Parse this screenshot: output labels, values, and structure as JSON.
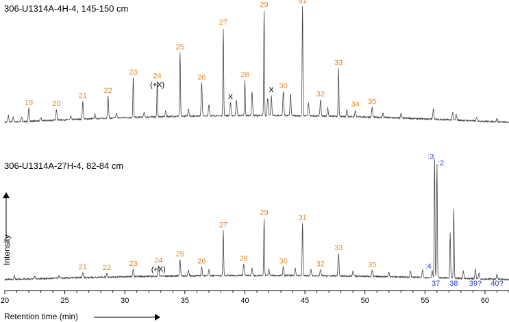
{
  "chart_data": {
    "type": "line",
    "xlabel": "Retention time (min)",
    "ylabel": "Intensity",
    "xlim": [
      20,
      62
    ],
    "xticks": [
      "20",
      "25",
      "30",
      "35",
      "40",
      "45",
      "50",
      "55",
      "60"
    ],
    "xtick_values": [
      20,
      25,
      30,
      35,
      40,
      45,
      50,
      55,
      60
    ],
    "colors": {
      "odd_alkane_label": "#e8861a",
      "other_label": "#2a3fd0",
      "trace": "#444444"
    },
    "panels": [
      {
        "title": "306-U1314A-4H-4, 145-150 cm",
        "peaks": [
          {
            "label": "19",
            "x": 22.0,
            "h": 0.12,
            "color": "orange"
          },
          {
            "label": "20",
            "x": 24.3,
            "h": 0.1,
            "color": "orange"
          },
          {
            "label": "21",
            "x": 26.5,
            "h": 0.16,
            "color": "orange"
          },
          {
            "label": "22",
            "x": 28.6,
            "h": 0.2,
            "color": "orange"
          },
          {
            "label": "23",
            "x": 30.7,
            "h": 0.36,
            "color": "orange"
          },
          {
            "label": "24",
            "x": 32.7,
            "h": 0.32,
            "color": "orange",
            "note": "(+X)"
          },
          {
            "label": "25",
            "x": 34.6,
            "h": 0.58,
            "color": "orange"
          },
          {
            "label": "26",
            "x": 36.4,
            "h": 0.3,
            "color": "orange"
          },
          {
            "label": "27",
            "x": 38.2,
            "h": 0.8,
            "color": "orange"
          },
          {
            "label": "X",
            "x": 38.8,
            "h": 0.12,
            "color": "black"
          },
          {
            "label": "28",
            "x": 40.0,
            "h": 0.32,
            "color": "orange"
          },
          {
            "label": "29",
            "x": 41.6,
            "h": 0.96,
            "color": "orange"
          },
          {
            "label": "X",
            "x": 42.2,
            "h": 0.18,
            "color": "black"
          },
          {
            "label": "30",
            "x": 43.2,
            "h": 0.22,
            "color": "orange"
          },
          {
            "label": "31",
            "x": 44.8,
            "h": 1.0,
            "color": "orange"
          },
          {
            "label": "32",
            "x": 46.3,
            "h": 0.15,
            "color": "orange"
          },
          {
            "label": "33",
            "x": 47.8,
            "h": 0.44,
            "color": "orange"
          },
          {
            "label": "34",
            "x": 49.2,
            "h": 0.06,
            "color": "orange"
          },
          {
            "label": "35",
            "x": 50.6,
            "h": 0.09,
            "color": "orange"
          }
        ],
        "unlabeled_peaks": [
          {
            "x": 20.3,
            "h": 0.06
          },
          {
            "x": 20.7,
            "h": 0.05
          },
          {
            "x": 21.4,
            "h": 0.04
          },
          {
            "x": 23.0,
            "h": 0.03
          },
          {
            "x": 25.5,
            "h": 0.03
          },
          {
            "x": 27.5,
            "h": 0.04
          },
          {
            "x": 29.3,
            "h": 0.04
          },
          {
            "x": 31.6,
            "h": 0.04
          },
          {
            "x": 33.4,
            "h": 0.05
          },
          {
            "x": 35.3,
            "h": 0.07
          },
          {
            "x": 37.0,
            "h": 0.1
          },
          {
            "x": 39.3,
            "h": 0.14
          },
          {
            "x": 40.6,
            "h": 0.22
          },
          {
            "x": 41.9,
            "h": 0.16
          },
          {
            "x": 43.8,
            "h": 0.2
          },
          {
            "x": 45.3,
            "h": 0.12
          },
          {
            "x": 46.9,
            "h": 0.08
          },
          {
            "x": 48.5,
            "h": 0.06
          },
          {
            "x": 51.5,
            "h": 0.04
          },
          {
            "x": 53.0,
            "h": 0.04
          },
          {
            "x": 55.7,
            "h": 0.1
          },
          {
            "x": 57.3,
            "h": 0.07
          },
          {
            "x": 57.6,
            "h": 0.05
          },
          {
            "x": 59.3,
            "h": 0.03
          },
          {
            "x": 61.0,
            "h": 0.03
          }
        ]
      },
      {
        "title": "306-U1314A-27H-4, 82-84 cm",
        "peaks": [
          {
            "label": "21",
            "x": 26.5,
            "h": 0.04,
            "color": "orange"
          },
          {
            "label": "22",
            "x": 28.5,
            "h": 0.03,
            "color": "orange"
          },
          {
            "label": "23",
            "x": 30.7,
            "h": 0.06,
            "color": "orange"
          },
          {
            "label": "24",
            "x": 32.8,
            "h": 0.08,
            "color": "orange",
            "note": "(+X)"
          },
          {
            "label": "25",
            "x": 34.6,
            "h": 0.13,
            "color": "orange"
          },
          {
            "label": "26",
            "x": 36.4,
            "h": 0.07,
            "color": "orange"
          },
          {
            "label": "27",
            "x": 38.2,
            "h": 0.36,
            "color": "orange"
          },
          {
            "label": "28",
            "x": 39.9,
            "h": 0.09,
            "color": "orange"
          },
          {
            "label": "29",
            "x": 41.6,
            "h": 0.46,
            "color": "orange"
          },
          {
            "label": "30",
            "x": 43.2,
            "h": 0.07,
            "color": "orange"
          },
          {
            "label": "31",
            "x": 44.8,
            "h": 0.42,
            "color": "orange"
          },
          {
            "label": "32",
            "x": 46.3,
            "h": 0.05,
            "color": "orange"
          },
          {
            "label": "33",
            "x": 47.8,
            "h": 0.18,
            "color": "orange"
          },
          {
            "label": "35",
            "x": 50.6,
            "h": 0.05,
            "color": "orange"
          },
          {
            "label": ":4",
            "x": 55.6,
            "h": 0.06,
            "color": "blue"
          },
          {
            "label": ":3",
            "x": 55.8,
            "h": 0.95,
            "color": "blue"
          },
          {
            "label": ":2",
            "x": 56.0,
            "h": 0.92,
            "color": "blue"
          },
          {
            "label": "37",
            "x": 55.9,
            "h": 0.0,
            "color": "blue",
            "label_below": true
          },
          {
            "label": "38",
            "x": 57.4,
            "h": 0.56,
            "color": "blue",
            "label_below": true
          },
          {
            "label": "39?",
            "x": 59.2,
            "h": 0.08,
            "color": "blue",
            "label_below": true
          },
          {
            "label": "40?",
            "x": 61.0,
            "h": 0.04,
            "color": "blue",
            "label_below": true
          }
        ],
        "unlabeled_peaks": [
          {
            "x": 20.8,
            "h": 0.03
          },
          {
            "x": 22.5,
            "h": 0.02
          },
          {
            "x": 24.5,
            "h": 0.02
          },
          {
            "x": 35.3,
            "h": 0.04
          },
          {
            "x": 37.0,
            "h": 0.05
          },
          {
            "x": 40.6,
            "h": 0.06
          },
          {
            "x": 42.0,
            "h": 0.05
          },
          {
            "x": 44.2,
            "h": 0.06
          },
          {
            "x": 45.5,
            "h": 0.05
          },
          {
            "x": 49.0,
            "h": 0.04
          },
          {
            "x": 52.0,
            "h": 0.04
          },
          {
            "x": 53.8,
            "h": 0.05
          },
          {
            "x": 54.8,
            "h": 0.06
          },
          {
            "x": 57.1,
            "h": 0.36
          },
          {
            "x": 58.2,
            "h": 0.06
          },
          {
            "x": 59.5,
            "h": 0.05
          }
        ]
      }
    ]
  }
}
